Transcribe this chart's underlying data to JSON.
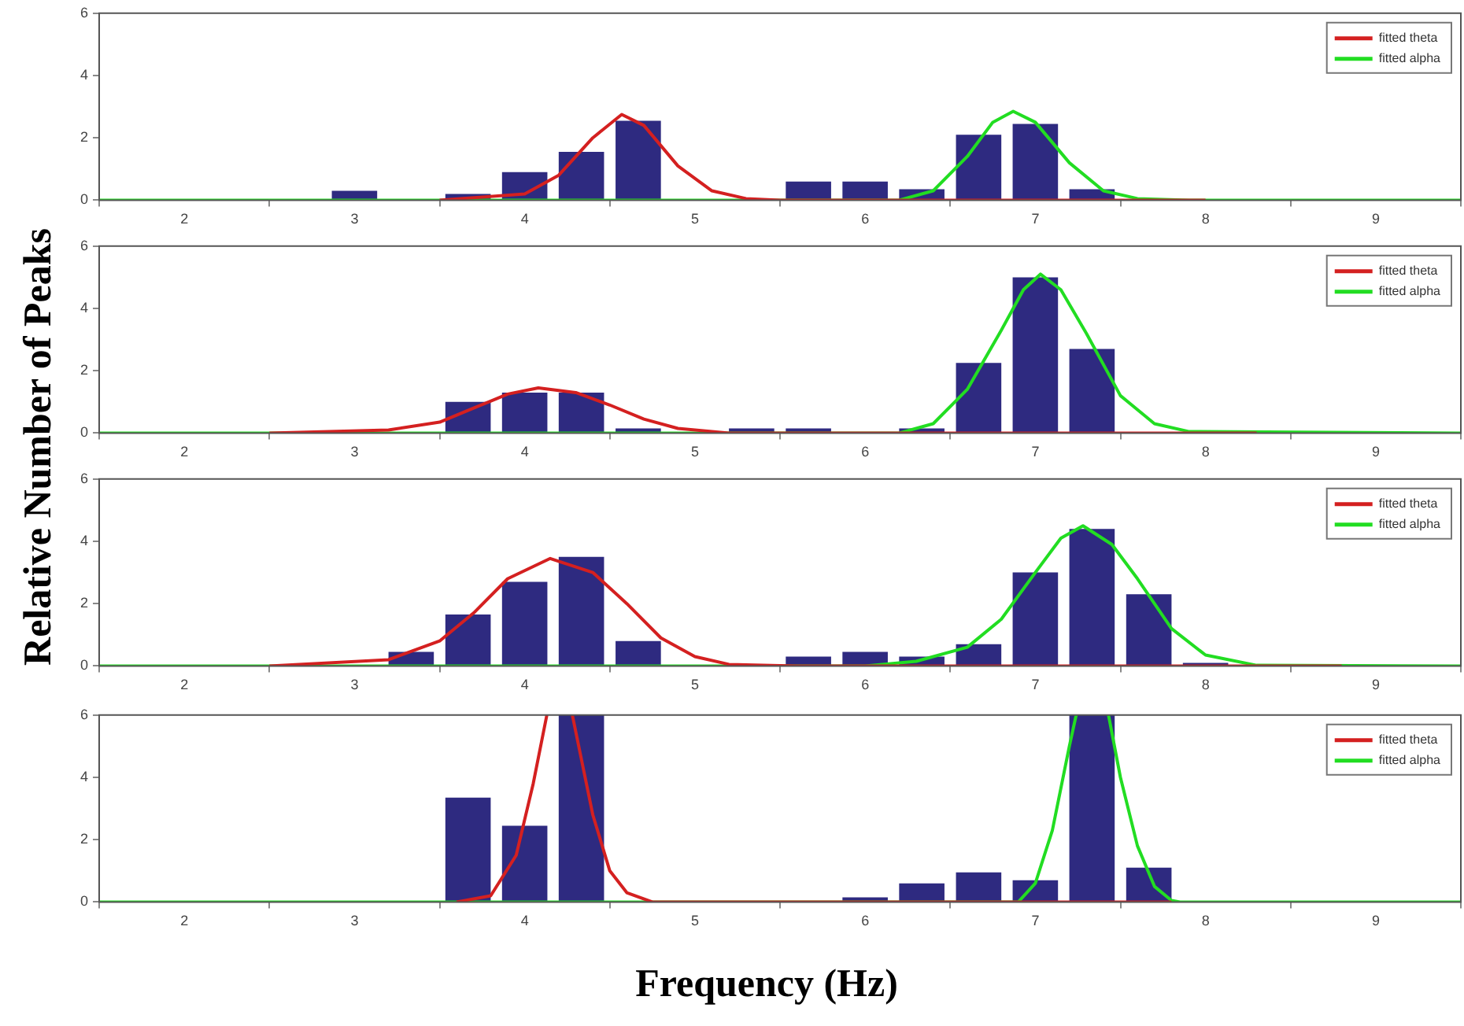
{
  "chart_data": [
    {
      "type": "bar",
      "ylabel": "Relative Number of Peaks",
      "xlim": [
        1.5,
        9.5
      ],
      "xticks": [
        2,
        3,
        4,
        5,
        6,
        7,
        8,
        9
      ],
      "ylim": [
        0,
        6
      ],
      "yticks": [
        0,
        2,
        4,
        6
      ],
      "legend": "top right",
      "grid": false,
      "series": [
        {
          "color": "#2e2a80",
          "x": [
            3.0,
            3.667,
            4.0,
            4.333,
            4.667,
            5.667,
            6.0,
            6.333,
            6.667,
            7.0,
            7.333
          ],
          "values": [
            0.3,
            0.2,
            0.9,
            1.55,
            2.55,
            0.6,
            0.6,
            0.35,
            2.1,
            2.45,
            0.35
          ]
        },
        {
          "type": "line",
          "name": "fitted theta",
          "color": "#d42020",
          "x": [
            3.5,
            4.0,
            4.2,
            4.4,
            4.57,
            4.7,
            4.9,
            5.1,
            5.3,
            5.5,
            8.0
          ],
          "values": [
            0,
            0.2,
            0.8,
            2.0,
            2.75,
            2.4,
            1.1,
            0.3,
            0.05,
            0,
            0
          ]
        },
        {
          "type": "line",
          "name": "fitted alpha",
          "color": "#22dd22",
          "x": [
            1.5,
            6.2,
            6.4,
            6.6,
            6.75,
            6.87,
            7.0,
            7.2,
            7.4,
            7.6,
            7.9,
            9.5
          ],
          "values": [
            0,
            0,
            0.3,
            1.4,
            2.5,
            2.85,
            2.5,
            1.2,
            0.3,
            0.05,
            0,
            0
          ]
        }
      ]
    },
    {
      "type": "bar",
      "xlim": [
        1.5,
        9.5
      ],
      "xticks": [
        2,
        3,
        4,
        5,
        6,
        7,
        8,
        9
      ],
      "ylim": [
        0,
        6
      ],
      "yticks": [
        0,
        2,
        4,
        6
      ],
      "legend": "top right",
      "grid": false,
      "series": [
        {
          "color": "#2e2a80",
          "x": [
            3.667,
            4.0,
            4.333,
            4.667,
            5.333,
            5.667,
            6.333,
            6.667,
            7.0,
            7.333
          ],
          "values": [
            1.0,
            1.3,
            1.3,
            0.15,
            0.15,
            0.15,
            0.15,
            2.25,
            5.0,
            2.7
          ]
        },
        {
          "type": "line",
          "name": "fitted theta",
          "color": "#d42020",
          "x": [
            2.5,
            3.2,
            3.5,
            3.7,
            3.9,
            4.08,
            4.3,
            4.5,
            4.7,
            4.9,
            5.2,
            6.0,
            8.3
          ],
          "values": [
            0,
            0.1,
            0.35,
            0.8,
            1.25,
            1.45,
            1.3,
            0.9,
            0.45,
            0.15,
            0,
            0,
            0
          ]
        },
        {
          "type": "line",
          "name": "fitted alpha",
          "color": "#22dd22",
          "x": [
            1.5,
            6.2,
            6.4,
            6.6,
            6.8,
            6.93,
            7.03,
            7.15,
            7.3,
            7.5,
            7.7,
            7.9,
            9.5
          ],
          "values": [
            0,
            0,
            0.3,
            1.4,
            3.3,
            4.6,
            5.1,
            4.6,
            3.2,
            1.2,
            0.3,
            0.05,
            0
          ]
        }
      ]
    },
    {
      "type": "bar",
      "xlim": [
        1.5,
        9.5
      ],
      "xticks": [
        2,
        3,
        4,
        5,
        6,
        7,
        8,
        9
      ],
      "ylim": [
        0,
        6
      ],
      "yticks": [
        0,
        2,
        4,
        6
      ],
      "legend": "top right",
      "grid": false,
      "series": [
        {
          "color": "#2e2a80",
          "x": [
            3.333,
            3.667,
            4.0,
            4.333,
            4.667,
            5.667,
            6.0,
            6.333,
            6.667,
            7.0,
            7.333,
            7.667,
            8.0
          ],
          "values": [
            0.45,
            1.65,
            2.7,
            3.5,
            0.8,
            0.3,
            0.45,
            0.3,
            0.7,
            3.0,
            4.4,
            2.3,
            0.1
          ]
        },
        {
          "type": "line",
          "name": "fitted theta",
          "color": "#d42020",
          "x": [
            2.5,
            3.2,
            3.5,
            3.7,
            3.9,
            4.15,
            4.4,
            4.6,
            4.8,
            5.0,
            5.2,
            5.6,
            8.8
          ],
          "values": [
            0,
            0.2,
            0.8,
            1.7,
            2.8,
            3.45,
            3.0,
            2.0,
            0.9,
            0.3,
            0.05,
            0,
            0
          ]
        },
        {
          "type": "line",
          "name": "fitted alpha",
          "color": "#22dd22",
          "x": [
            1.5,
            6.0,
            6.3,
            6.6,
            6.8,
            7.0,
            7.15,
            7.28,
            7.45,
            7.6,
            7.8,
            8.0,
            8.3,
            9.5
          ],
          "values": [
            0,
            0,
            0.15,
            0.6,
            1.5,
            3.0,
            4.1,
            4.5,
            3.9,
            2.8,
            1.2,
            0.35,
            0.02,
            0
          ]
        }
      ]
    },
    {
      "type": "bar",
      "xlabel": "Frequency (Hz)",
      "xlim": [
        1.5,
        9.5
      ],
      "xticks": [
        2,
        3,
        4,
        5,
        6,
        7,
        8,
        9
      ],
      "ylim": [
        0,
        6
      ],
      "yticks": [
        0,
        2,
        4,
        6
      ],
      "legend": "top right",
      "grid": false,
      "series": [
        {
          "color": "#2e2a80",
          "x": [
            3.667,
            4.0,
            4.333,
            6.0,
            6.333,
            6.667,
            7.0,
            7.333,
            7.667
          ],
          "values": [
            3.35,
            2.45,
            6,
            0.15,
            0.6,
            0.95,
            0.7,
            6,
            1.1
          ]
        },
        {
          "type": "line",
          "name": "fitted theta",
          "color": "#d42020",
          "x": [
            3.6,
            3.8,
            3.95,
            4.05,
            4.13,
            null,
            4.28,
            4.4,
            4.5,
            4.6,
            4.75,
            7.0,
            7.8
          ],
          "values": [
            0,
            0.2,
            1.5,
            3.8,
            6,
            null,
            6,
            2.8,
            1.0,
            0.3,
            0,
            0,
            0
          ]
        },
        {
          "type": "line",
          "name": "fitted alpha",
          "color": "#22dd22",
          "x": [
            1.5,
            6.9,
            7.0,
            7.1,
            7.2,
            7.24,
            null,
            7.43,
            7.5,
            7.6,
            7.7,
            7.8,
            7.85,
            9.5
          ],
          "values": [
            0,
            0,
            0.6,
            2.3,
            5.0,
            6,
            null,
            6,
            4.0,
            1.8,
            0.5,
            0.05,
            0,
            0
          ]
        }
      ]
    }
  ]
}
